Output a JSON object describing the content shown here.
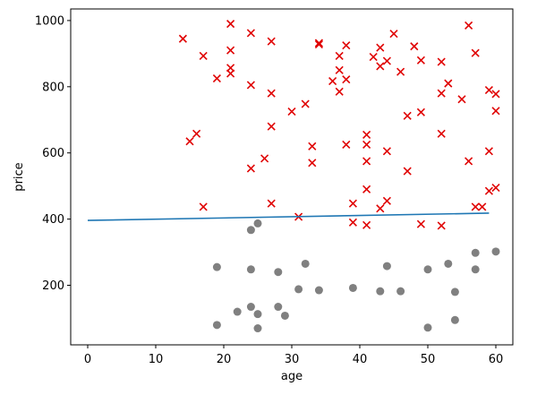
{
  "chart_data": {
    "type": "scatter",
    "title": "",
    "xlabel": "age",
    "ylabel": "price",
    "xlim": [
      -2.5,
      62.5
    ],
    "ylim": [
      20,
      1035
    ],
    "xticks": [
      0,
      10,
      20,
      30,
      40,
      50,
      60
    ],
    "yticks": [
      200,
      400,
      600,
      800,
      1000
    ],
    "grid": false,
    "legend": "none",
    "series": [
      {
        "marker": "x",
        "color": "#e00000",
        "points": [
          [
            14,
            945
          ],
          [
            21,
            990
          ],
          [
            24,
            962
          ],
          [
            27,
            937
          ],
          [
            34,
            932
          ],
          [
            34,
            928
          ],
          [
            38,
            925
          ],
          [
            43,
            918
          ],
          [
            45,
            960
          ],
          [
            48,
            922
          ],
          [
            56,
            985
          ],
          [
            17,
            893
          ],
          [
            21,
            910
          ],
          [
            21,
            857
          ],
          [
            21,
            840
          ],
          [
            19,
            825
          ],
          [
            24,
            805
          ],
          [
            27,
            780
          ],
          [
            37,
            893
          ],
          [
            37,
            850
          ],
          [
            36,
            817
          ],
          [
            38,
            822
          ],
          [
            37,
            785
          ],
          [
            42,
            890
          ],
          [
            43,
            862
          ],
          [
            44,
            878
          ],
          [
            46,
            845
          ],
          [
            49,
            880
          ],
          [
            52,
            875
          ],
          [
            53,
            810
          ],
          [
            52,
            780
          ],
          [
            55,
            762
          ],
          [
            57,
            902
          ],
          [
            59,
            790
          ],
          [
            60,
            778
          ],
          [
            60,
            727
          ],
          [
            30,
            725
          ],
          [
            32,
            748
          ],
          [
            27,
            680
          ],
          [
            33,
            620
          ],
          [
            33,
            570
          ],
          [
            16,
            658
          ],
          [
            15,
            635
          ],
          [
            24,
            553
          ],
          [
            26,
            583
          ],
          [
            17,
            437
          ],
          [
            38,
            625
          ],
          [
            41,
            655
          ],
          [
            41,
            625
          ],
          [
            41,
            575
          ],
          [
            44,
            605
          ],
          [
            47,
            712
          ],
          [
            49,
            723
          ],
          [
            47,
            545
          ],
          [
            52,
            658
          ],
          [
            56,
            575
          ],
          [
            59,
            605
          ],
          [
            27,
            447
          ],
          [
            31,
            407
          ],
          [
            39,
            447
          ],
          [
            41,
            490
          ],
          [
            43,
            432
          ],
          [
            44,
            455
          ],
          [
            39,
            390
          ],
          [
            41,
            382
          ],
          [
            49,
            385
          ],
          [
            52,
            380
          ],
          [
            57,
            437
          ],
          [
            58,
            437
          ],
          [
            59,
            485
          ],
          [
            60,
            495
          ]
        ]
      },
      {
        "marker": "o",
        "color": "#808080",
        "points": [
          [
            19,
            255
          ],
          [
            24,
            248
          ],
          [
            25,
            387
          ],
          [
            24,
            367
          ],
          [
            28,
            240
          ],
          [
            32,
            265
          ],
          [
            34,
            185
          ],
          [
            31,
            188
          ],
          [
            22,
            120
          ],
          [
            24,
            135
          ],
          [
            25,
            113
          ],
          [
            19,
            80
          ],
          [
            25,
            70
          ],
          [
            28,
            135
          ],
          [
            29,
            108
          ],
          [
            39,
            192
          ],
          [
            43,
            182
          ],
          [
            44,
            258
          ],
          [
            46,
            182
          ],
          [
            50,
            248
          ],
          [
            53,
            265
          ],
          [
            54,
            180
          ],
          [
            50,
            72
          ],
          [
            54,
            95
          ],
          [
            57,
            298
          ],
          [
            57,
            248
          ],
          [
            60,
            302
          ]
        ]
      },
      {
        "type": "line",
        "color": "#1f77b4",
        "points": [
          [
            0,
            396
          ],
          [
            59,
            418
          ]
        ]
      }
    ]
  }
}
